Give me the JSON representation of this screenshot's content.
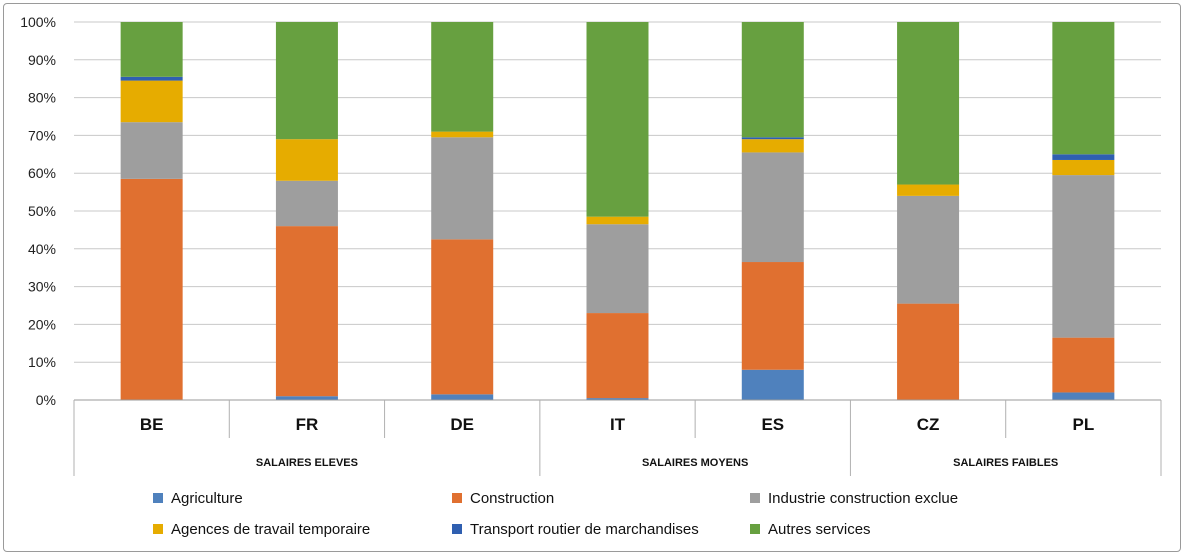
{
  "chart_data": {
    "type": "bar",
    "stacked": true,
    "categories": [
      "BE",
      "FR",
      "DE",
      "IT",
      "ES",
      "CZ",
      "PL"
    ],
    "groups": [
      {
        "label": "SALAIRES ELEVES",
        "categories": [
          "BE",
          "FR",
          "DE"
        ]
      },
      {
        "label": "SALAIRES MOYENS",
        "categories": [
          "IT",
          "ES"
        ]
      },
      {
        "label": "SALAIRES FAIBLES",
        "categories": [
          "CZ",
          "PL"
        ]
      }
    ],
    "series": [
      {
        "name": "Agriculture",
        "color": "#4f81bd",
        "values": [
          0,
          1,
          1.5,
          0.5,
          8,
          0,
          2
        ]
      },
      {
        "name": "Construction",
        "color": "#e07030",
        "values": [
          58.5,
          45,
          41,
          22.5,
          28.5,
          25.5,
          14.5
        ]
      },
      {
        "name": "Industrie construction exclue",
        "color": "#9e9e9e",
        "values": [
          15,
          12,
          27,
          23.5,
          29,
          28.5,
          43
        ]
      },
      {
        "name": "Agences de travail temporaire",
        "color": "#e6ac00",
        "values": [
          11,
          11,
          1.5,
          2,
          3.5,
          3,
          4
        ]
      },
      {
        "name": "Transport routier de marchandises",
        "color": "#2f5fb0",
        "values": [
          1,
          0,
          0,
          0,
          0.5,
          0,
          1.5
        ]
      },
      {
        "name": "Autres services",
        "color": "#67a040",
        "values": [
          14.5,
          31,
          29,
          51.5,
          30.5,
          43,
          35
        ]
      }
    ],
    "y_ticks": [
      "0%",
      "10%",
      "20%",
      "30%",
      "40%",
      "50%",
      "60%",
      "70%",
      "80%",
      "90%",
      "100%"
    ],
    "ylim": [
      0,
      100
    ],
    "grid": true,
    "legend_position": "bottom",
    "legend_rows": [
      [
        "Agriculture",
        "Construction",
        "Industrie construction exclue"
      ],
      [
        "Agences de travail temporaire",
        "Transport routier de marchandises",
        "Autres services"
      ]
    ]
  }
}
